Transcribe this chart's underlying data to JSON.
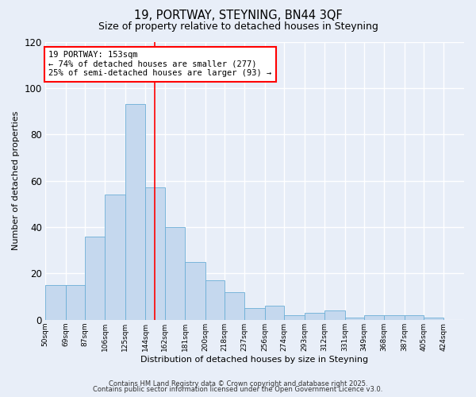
{
  "title1": "19, PORTWAY, STEYNING, BN44 3QF",
  "title2": "Size of property relative to detached houses in Steyning",
  "xlabel": "Distribution of detached houses by size in Steyning",
  "ylabel": "Number of detached properties",
  "bar_left_edges": [
    50,
    69,
    87,
    106,
    125,
    144,
    162,
    181,
    200,
    218,
    237,
    256,
    274,
    293,
    312,
    331,
    349,
    368,
    387,
    405
  ],
  "bar_heights": [
    15,
    15,
    36,
    54,
    93,
    57,
    40,
    25,
    17,
    12,
    5,
    6,
    2,
    3,
    4,
    1,
    2,
    2,
    2,
    1
  ],
  "bar_widths": [
    19,
    18,
    19,
    19,
    19,
    18,
    19,
    19,
    18,
    19,
    19,
    18,
    19,
    19,
    19,
    18,
    19,
    19,
    18,
    19
  ],
  "xlim": [
    50,
    443
  ],
  "ylim": [
    0,
    120
  ],
  "yticks": [
    0,
    20,
    40,
    60,
    80,
    100,
    120
  ],
  "xtick_labels": [
    "50sqm",
    "69sqm",
    "87sqm",
    "106sqm",
    "125sqm",
    "144sqm",
    "162sqm",
    "181sqm",
    "200sqm",
    "218sqm",
    "237sqm",
    "256sqm",
    "274sqm",
    "293sqm",
    "312sqm",
    "331sqm",
    "349sqm",
    "368sqm",
    "387sqm",
    "405sqm",
    "424sqm"
  ],
  "xtick_positions": [
    50,
    69,
    87,
    106,
    125,
    144,
    162,
    181,
    200,
    218,
    237,
    256,
    274,
    293,
    312,
    331,
    349,
    368,
    387,
    405,
    424
  ],
  "bar_color": "#c5d8ee",
  "bar_edge_color": "#6baed6",
  "vline_x": 153,
  "vline_color": "red",
  "annotation_text": "19 PORTWAY: 153sqm\n← 74% of detached houses are smaller (277)\n25% of semi-detached houses are larger (93) →",
  "annotation_box_color": "white",
  "annotation_box_edge": "red",
  "bg_color": "#e8eef8",
  "grid_color": "white",
  "footer1": "Contains HM Land Registry data © Crown copyright and database right 2025.",
  "footer2": "Contains public sector information licensed under the Open Government Licence v3.0."
}
